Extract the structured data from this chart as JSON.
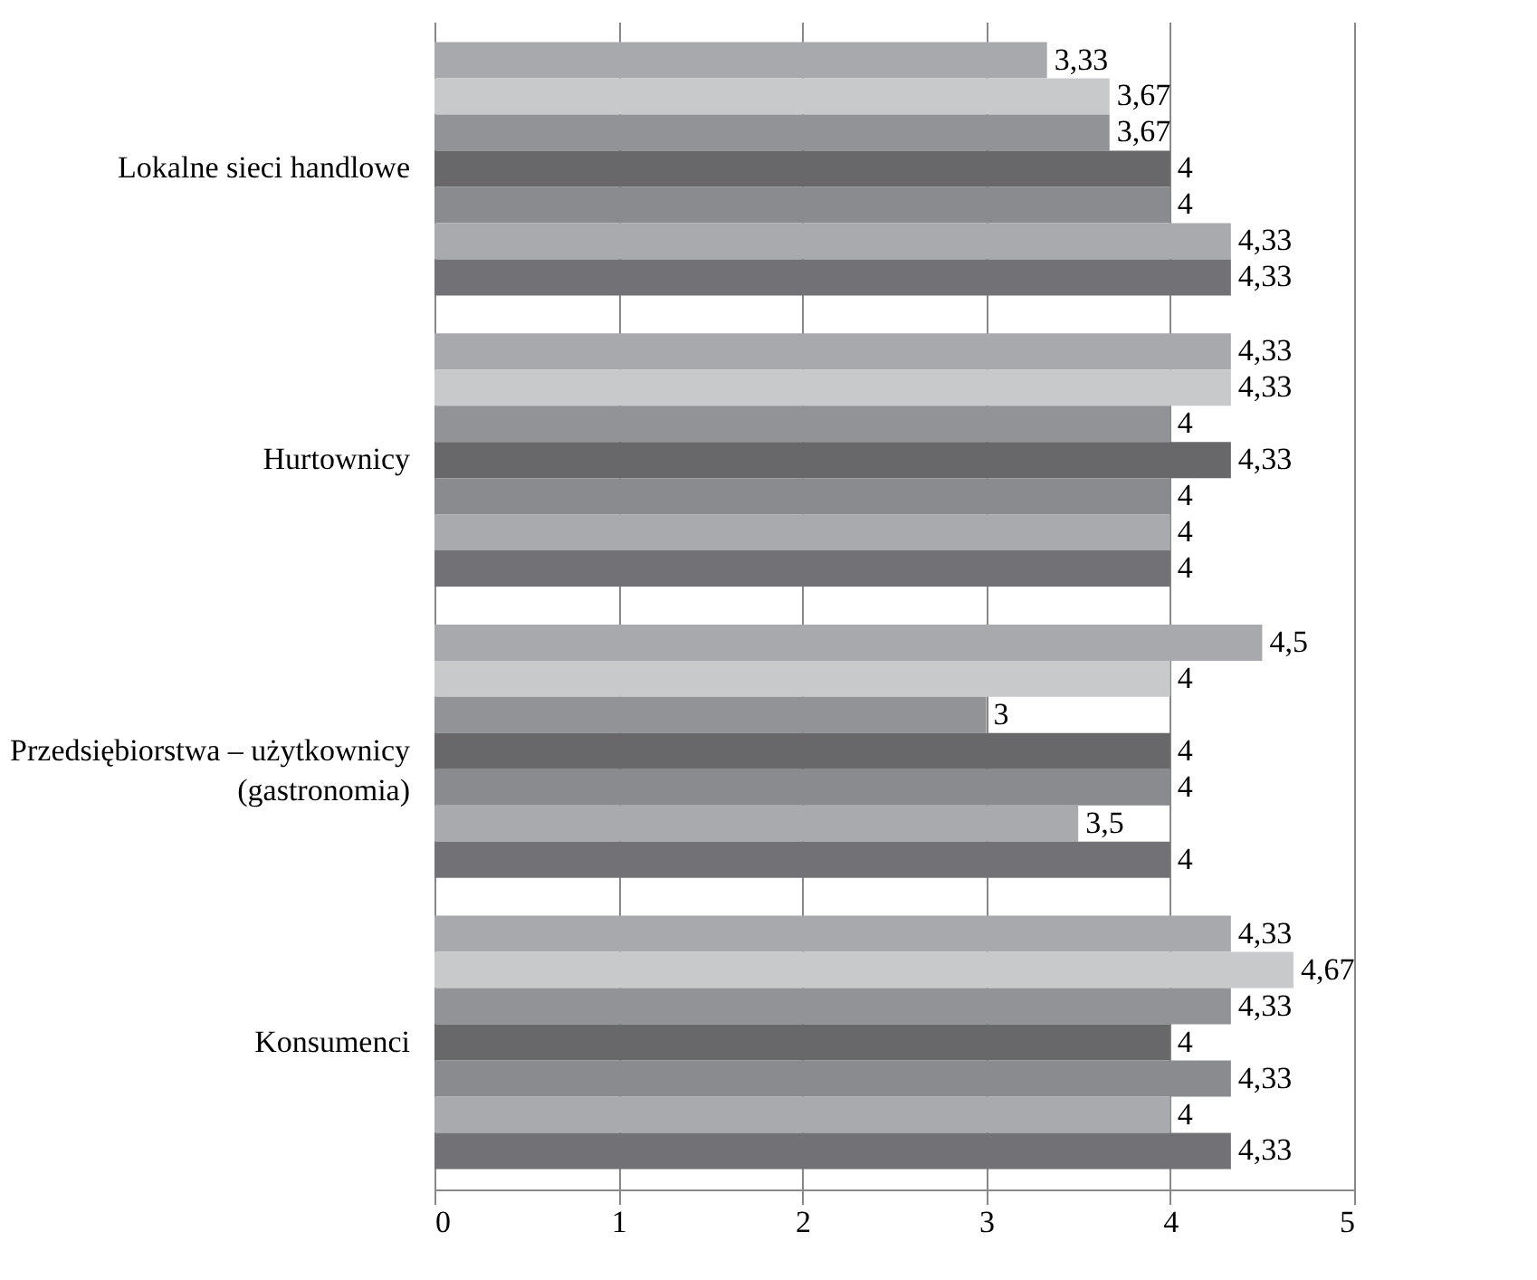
{
  "chart_data": {
    "type": "bar",
    "orientation": "horizontal",
    "categories": [
      "Lokalne sieci handlowe",
      "Hurtownicy",
      "Przedsiębiorstwa – użytkownicy\n(gastronomia)",
      "Konsumenci"
    ],
    "series": [
      {
        "color": "#a8a9ad",
        "values": [
          3.33,
          4.33,
          4.5,
          4.33
        ],
        "value_labels": [
          "3,33",
          "4,33",
          "4,5",
          "4,33"
        ]
      },
      {
        "color": "#c8c9cb",
        "values": [
          3.67,
          4.33,
          4,
          4.67
        ],
        "value_labels": [
          "3,67",
          "4,33",
          "4",
          "4,67"
        ]
      },
      {
        "color": "#929396",
        "values": [
          3.67,
          4,
          3,
          4.33
        ],
        "value_labels": [
          "3,67",
          "4",
          "3",
          "4,33"
        ]
      },
      {
        "color": "#68686b",
        "values": [
          4,
          4.33,
          4,
          4
        ],
        "value_labels": [
          "4",
          "4,33",
          "4",
          "4"
        ]
      },
      {
        "color": "#8a8b8e",
        "values": [
          4,
          4,
          4,
          4.33
        ],
        "value_labels": [
          "4",
          "4",
          "4",
          "4,33"
        ]
      },
      {
        "color": "#a9aaad",
        "values": [
          4.33,
          4,
          3.5,
          4
        ],
        "value_labels": [
          "4,33",
          "4",
          "3,5",
          "4"
        ]
      },
      {
        "color": "#727276",
        "values": [
          4.33,
          4,
          4,
          4.33
        ],
        "value_labels": [
          "4,33",
          "4",
          "4",
          "4,33"
        ]
      }
    ],
    "xlim": [
      0,
      5
    ],
    "xticks": [
      0,
      1,
      2,
      3,
      4,
      5
    ],
    "grid": "x",
    "legend": false
  }
}
